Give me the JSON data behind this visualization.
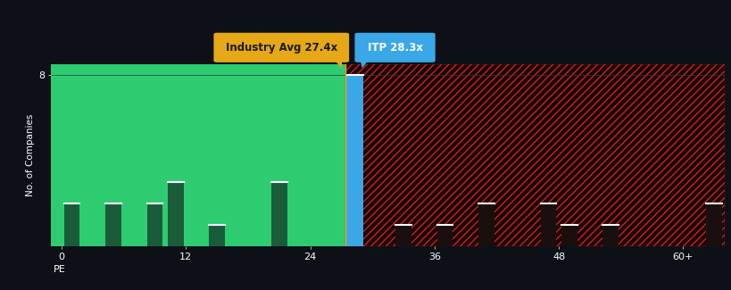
{
  "bg_color": "#0d1117",
  "left_bg": "#2ecc71",
  "right_bg": "#1a0505",
  "hatch_color": "#cc2222",
  "bar_color_left": "#1a5c3a",
  "bar_color_right": "#1a0f0f",
  "bar_color_itp": "#3aa8e8",
  "ylabel": "No. of Companies",
  "xlabel": "PE",
  "ytick_val": 8,
  "ymax": 8.5,
  "xmin": -1,
  "xmax": 64,
  "industry_avg": 27.4,
  "itp_val": 28.3,
  "industry_label": "Industry Avg 27.4x",
  "itp_label": "ITP 28.3x",
  "industry_box_color": "#e6a817",
  "itp_box_color": "#3aa8e8",
  "xtick_positions": [
    0,
    12,
    24,
    36,
    48,
    60
  ],
  "xtick_labels": [
    "0",
    "12",
    "24",
    "36",
    "48",
    "60+"
  ],
  "bar_centers": [
    1,
    5,
    9,
    11,
    15,
    21,
    28.3,
    33,
    37,
    41,
    47,
    49,
    53,
    63
  ],
  "bar_heights": [
    2,
    2,
    2,
    3,
    1,
    3,
    8,
    1,
    1,
    2,
    2,
    1,
    1,
    2
  ],
  "bar_width": 1.8,
  "grid_color": "#2a3a4a",
  "tick_color": "#888888"
}
